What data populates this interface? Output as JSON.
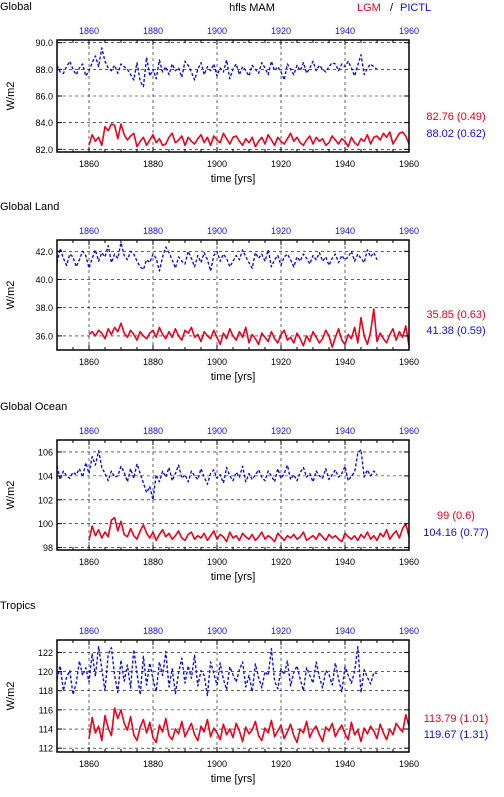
{
  "header": {
    "variable": "hfls MAM",
    "lgm_label": "LGM",
    "separator": "/",
    "pictl_label": "PICTL"
  },
  "colors": {
    "lgm": "#e8001c",
    "pictl": "#1010d8",
    "axis": "#000000"
  },
  "chart_data": [
    {
      "type": "line",
      "title": "Global",
      "xlabel": "time [yrs]",
      "ylabel": "W/m2",
      "xlim": [
        1850,
        1960
      ],
      "ylim": [
        81.8,
        90.2
      ],
      "xticks": [
        1860,
        1880,
        1900,
        1920,
        1940,
        1960
      ],
      "yticks": [
        82.0,
        84.0,
        86.0,
        88.0,
        90.0
      ],
      "ytick_labels": [
        "82.0",
        "84.0",
        "86.0",
        "88.0",
        "90.0"
      ],
      "grid": true,
      "summary": [
        {
          "text": "82.76 (0.49)",
          "series": "LGM"
        },
        {
          "text": "88.02 (0.62)",
          "series": "PICTL"
        }
      ],
      "series": [
        {
          "name": "LGM",
          "x_start": 1860,
          "values": [
            82.3,
            83.1,
            82.6,
            82.9,
            82.3,
            83.7,
            83.4,
            83.9,
            83.8,
            82.8,
            83.9,
            83.1,
            82.7,
            83.0,
            83.2,
            82.2,
            82.6,
            82.9,
            82.3,
            82.7,
            83.1,
            82.5,
            82.8,
            82.3,
            82.4,
            82.9,
            83.2,
            82.5,
            82.7,
            83.0,
            82.3,
            82.9,
            82.6,
            82.4,
            82.8,
            83.1,
            82.5,
            82.9,
            82.3,
            83.0,
            82.7,
            82.5,
            83.2,
            82.8,
            82.4,
            82.9,
            83.0,
            82.6,
            82.3,
            82.8,
            82.5,
            82.9,
            82.2,
            82.6,
            82.9,
            82.4,
            83.1,
            82.7,
            82.3,
            82.9,
            82.6,
            82.4,
            82.8,
            83.2,
            82.6,
            82.9,
            82.5,
            82.3,
            82.7,
            83.0,
            82.4,
            82.9,
            82.6,
            82.8,
            82.3,
            82.5,
            83.0,
            82.7,
            82.4,
            82.8,
            82.6,
            82.2,
            82.9,
            82.5,
            82.3,
            82.8,
            82.6,
            83.1,
            82.4,
            82.9,
            83.0,
            82.7,
            83.2,
            82.9,
            83.3,
            82.4,
            82.8,
            83.2,
            83.3,
            83.0,
            82.4
          ]
        },
        {
          "name": "PICTL",
          "x_start": 1850,
          "values": [
            88.3,
            87.8,
            87.7,
            88.2,
            88.6,
            88.0,
            87.6,
            88.1,
            88.4,
            87.5,
            87.9,
            88.5,
            89.0,
            88.2,
            89.6,
            88.6,
            88.1,
            87.9,
            88.3,
            87.7,
            88.4,
            88.2,
            88.0,
            87.6,
            87.2,
            88.5,
            87.1,
            86.7,
            88.9,
            87.5,
            88.0,
            87.3,
            88.7,
            87.8,
            88.2,
            87.6,
            88.4,
            87.9,
            88.1,
            87.4,
            88.6,
            88.3,
            87.8,
            87.2,
            88.0,
            88.5,
            87.6,
            88.2,
            87.9,
            88.4,
            87.5,
            88.1,
            87.8,
            88.7,
            87.3,
            88.0,
            88.4,
            87.6,
            88.2,
            87.9,
            87.5,
            88.3,
            88.0,
            87.7,
            88.5,
            88.1,
            87.6,
            88.6,
            87.9,
            88.2,
            87.8,
            87.2,
            88.4,
            88.0,
            87.6,
            88.3,
            87.9,
            88.5,
            87.7,
            88.1,
            88.6,
            87.9,
            88.3,
            88.0,
            87.8,
            88.2,
            88.5,
            88.4,
            87.9,
            88.4,
            88.2,
            88.6,
            88.1,
            87.5,
            88.3,
            89.1,
            87.6,
            88.1,
            88.4,
            88.2,
            88.0
          ]
        }
      ]
    },
    {
      "type": "line",
      "title": "Global Land",
      "xlabel": "time [yrs]",
      "ylabel": "W/m2",
      "xlim": [
        1850,
        1960
      ],
      "ylim": [
        35.0,
        42.8
      ],
      "xticks": [
        1860,
        1880,
        1900,
        1920,
        1940,
        1960
      ],
      "yticks": [
        36.0,
        38.0,
        40.0,
        42.0
      ],
      "ytick_labels": [
        "36.0",
        "38.0",
        "40.0",
        "42.0"
      ],
      "grid": true,
      "summary": [
        {
          "text": "35.85 (0.63)",
          "series": "LGM"
        },
        {
          "text": "41.38 (0.59)",
          "series": "PICTL"
        }
      ],
      "series": [
        {
          "name": "LGM",
          "x_start": 1860,
          "values": [
            36.1,
            36.3,
            36.0,
            36.4,
            36.2,
            35.8,
            36.5,
            36.1,
            36.6,
            36.3,
            36.9,
            36.2,
            35.9,
            36.4,
            36.1,
            35.7,
            36.3,
            36.0,
            35.8,
            36.2,
            36.4,
            35.9,
            36.6,
            36.1,
            35.8,
            36.3,
            35.9,
            36.5,
            36.0,
            35.7,
            36.4,
            36.2,
            36.6,
            35.9,
            36.1,
            35.6,
            36.3,
            36.0,
            35.8,
            36.4,
            35.9,
            35.4,
            36.2,
            35.8,
            36.5,
            36.0,
            35.7,
            36.3,
            35.9,
            36.6,
            35.5,
            36.1,
            35.8,
            35.4,
            36.2,
            35.9,
            35.6,
            36.3,
            35.8,
            35.5,
            36.1,
            36.4,
            35.7,
            35.9,
            35.5,
            36.2,
            35.8,
            35.3,
            36.0,
            35.6,
            36.3,
            35.9,
            35.5,
            35.8,
            36.4,
            36.0,
            35.2,
            35.9,
            36.5,
            35.7,
            35.4,
            36.1,
            35.8,
            36.6,
            35.5,
            37.3,
            36.0,
            35.4,
            36.3,
            37.9,
            35.6,
            36.2,
            35.8,
            35.5,
            36.1,
            36.5,
            35.7,
            36.3,
            35.9,
            36.7,
            35.3
          ]
        },
        {
          "name": "PICTL",
          "x_start": 1850,
          "values": [
            41.2,
            42.2,
            41.5,
            41.0,
            41.8,
            41.6,
            40.9,
            41.4,
            42.0,
            41.7,
            40.8,
            41.5,
            42.1,
            41.3,
            41.9,
            41.6,
            42.4,
            41.2,
            41.8,
            41.5,
            42.6,
            41.7,
            41.4,
            42.0,
            41.8,
            41.3,
            40.9,
            40.7,
            41.4,
            41.2,
            41.8,
            41.5,
            40.6,
            41.6,
            42.3,
            41.9,
            41.4,
            40.8,
            41.6,
            41.3,
            41.1,
            42.0,
            41.5,
            40.9,
            41.7,
            41.2,
            41.9,
            41.4,
            40.6,
            41.7,
            42.0,
            41.3,
            41.8,
            41.5,
            40.9,
            41.3,
            41.7,
            41.4,
            42.1,
            41.6,
            41.2,
            40.8,
            41.9,
            41.5,
            41.8,
            41.3,
            42.1,
            40.9,
            41.4,
            41.7,
            41.0,
            41.6,
            41.8,
            41.4,
            40.9,
            41.6,
            41.3,
            41.8,
            41.5,
            41.1,
            41.7,
            41.4,
            41.9,
            41.3,
            41.6,
            41.0,
            41.5,
            41.8,
            41.2,
            41.7,
            41.4,
            41.6,
            42.0,
            41.3,
            41.8,
            41.5,
            41.2,
            42.1,
            41.6,
            41.9,
            41.4
          ]
        }
      ]
    },
    {
      "type": "line",
      "title": "Global Ocean",
      "xlabel": "time [yrs]",
      "ylabel": "W/m2",
      "xlim": [
        1850,
        1960
      ],
      "ylim": [
        97.8,
        107.0
      ],
      "xticks": [
        1860,
        1880,
        1900,
        1920,
        1940,
        1960
      ],
      "yticks": [
        98,
        100,
        102,
        104,
        106
      ],
      "ytick_labels": [
        "98",
        "100",
        "102",
        "104",
        "106"
      ],
      "grid": true,
      "summary": [
        {
          "text": "99 (0.6)",
          "series": "LGM"
        },
        {
          "text": "104.16 (0.77)",
          "series": "PICTL"
        }
      ],
      "series": [
        {
          "name": "LGM",
          "x_start": 1860,
          "values": [
            98.6,
            99.8,
            99.0,
            99.5,
            98.8,
            99.3,
            98.9,
            100.3,
            100.5,
            99.4,
            100.2,
            99.1,
            98.9,
            99.6,
            99.0,
            98.7,
            99.4,
            99.9,
            99.2,
            98.8,
            99.3,
            98.6,
            99.1,
            99.5,
            98.9,
            99.2,
            98.7,
            99.0,
            99.4,
            98.8,
            98.6,
            99.1,
            99.3,
            98.7,
            99.0,
            98.8,
            99.2,
            98.6,
            99.0,
            99.4,
            98.7,
            99.1,
            98.9,
            98.5,
            99.3,
            98.8,
            99.0,
            98.6,
            99.2,
            98.9,
            98.7,
            99.1,
            98.6,
            98.9,
            99.3,
            98.7,
            99.0,
            98.8,
            98.5,
            99.2,
            98.9,
            98.6,
            99.0,
            98.8,
            99.1,
            98.7,
            98.9,
            99.3,
            98.6,
            98.8,
            99.0,
            98.7,
            99.2,
            98.9,
            98.6,
            99.1,
            98.8,
            99.0,
            98.7,
            98.5,
            99.2,
            98.9,
            98.7,
            99.0,
            98.6,
            99.1,
            98.8,
            99.3,
            98.7,
            99.0,
            98.6,
            99.2,
            98.9,
            99.5,
            98.7,
            99.1,
            99.4,
            98.8,
            99.6,
            100.0,
            98.9
          ]
        },
        {
          "name": "PICTL",
          "x_start": 1850,
          "values": [
            104.8,
            103.7,
            104.4,
            104.0,
            103.8,
            104.3,
            104.1,
            104.6,
            103.9,
            105.1,
            104.2,
            105.6,
            104.9,
            106.1,
            104.7,
            104.2,
            103.6,
            104.4,
            103.9,
            104.0,
            104.8,
            104.3,
            103.5,
            104.6,
            103.8,
            105.0,
            104.2,
            103.4,
            102.6,
            103.1,
            102.0,
            104.1,
            103.5,
            104.4,
            103.9,
            104.7,
            103.6,
            104.2,
            104.9,
            103.8,
            104.1,
            103.5,
            104.4,
            104.0,
            103.7,
            104.6,
            103.9,
            103.3,
            104.2,
            104.5,
            103.8,
            104.1,
            103.4,
            104.7,
            104.0,
            103.6,
            104.3,
            103.9,
            104.8,
            103.5,
            104.2,
            103.7,
            104.1,
            104.5,
            103.9,
            103.6,
            104.4,
            104.0,
            103.5,
            104.6,
            103.8,
            104.2,
            104.9,
            103.7,
            104.1,
            103.6,
            104.3,
            104.7,
            103.9,
            104.2,
            103.5,
            104.4,
            104.0,
            103.8,
            104.6,
            103.7,
            104.1,
            104.5,
            103.9,
            104.2,
            104.8,
            103.6,
            104.0,
            104.3,
            105.9,
            106.2,
            103.9,
            104.5,
            104.0,
            104.4,
            104.1
          ]
        }
      ]
    },
    {
      "type": "line",
      "title": "Tropics",
      "xlabel": "time [yrs]",
      "ylabel": "W/m2",
      "xlim": [
        1850,
        1960
      ],
      "ylim": [
        111.6,
        123.3
      ],
      "xticks": [
        1860,
        1880,
        1900,
        1920,
        1940,
        1960
      ],
      "yticks": [
        112,
        114,
        116,
        118,
        120,
        122
      ],
      "ytick_labels": [
        "112",
        "114",
        "116",
        "118",
        "120",
        "122"
      ],
      "grid": true,
      "summary": [
        {
          "text": "113.79 (1.01)",
          "series": "LGM"
        },
        {
          "text": "119.67 (1.31)",
          "series": "PICTL"
        }
      ],
      "series": [
        {
          "name": "LGM",
          "x_start": 1860,
          "values": [
            113.0,
            115.2,
            113.6,
            114.3,
            112.8,
            115.4,
            114.1,
            113.3,
            116.2,
            115.1,
            116.0,
            114.6,
            113.9,
            115.3,
            113.4,
            112.8,
            114.2,
            115.0,
            113.6,
            114.7,
            113.1,
            112.6,
            114.4,
            113.7,
            115.1,
            113.3,
            112.9,
            114.0,
            113.5,
            114.8,
            113.2,
            113.9,
            114.6,
            113.4,
            112.8,
            114.3,
            113.7,
            115.0,
            113.2,
            114.1,
            113.6,
            112.9,
            114.5,
            113.4,
            114.0,
            113.1,
            114.6,
            113.8,
            112.7,
            114.2,
            113.5,
            113.9,
            114.8,
            113.3,
            112.8,
            114.1,
            113.6,
            114.9,
            113.2,
            113.8,
            114.4,
            113.0,
            113.7,
            114.5,
            113.3,
            112.6,
            114.0,
            113.6,
            114.8,
            113.1,
            113.9,
            114.3,
            113.4,
            112.7,
            114.2,
            113.8,
            114.6,
            113.2,
            113.9,
            114.4,
            113.5,
            112.9,
            114.7,
            113.4,
            113.9,
            112.7,
            114.1,
            113.5,
            114.3,
            113.8,
            113.0,
            114.5,
            113.6,
            112.9,
            114.0,
            113.4,
            114.6,
            114.1,
            113.7,
            115.5,
            114.3
          ]
        },
        {
          "name": "PICTL",
          "x_start": 1850,
          "values": [
            119.2,
            120.6,
            118.0,
            119.4,
            120.1,
            117.6,
            118.8,
            121.1,
            119.6,
            120.4,
            118.9,
            121.9,
            119.5,
            122.6,
            120.3,
            118.0,
            121.8,
            122.5,
            119.6,
            117.8,
            121.2,
            119.0,
            120.7,
            118.3,
            122.3,
            119.8,
            117.6,
            121.6,
            118.6,
            120.9,
            119.2,
            117.9,
            121.0,
            119.6,
            122.1,
            118.4,
            120.3,
            117.7,
            119.9,
            121.4,
            118.8,
            120.6,
            119.3,
            121.7,
            118.5,
            120.1,
            119.6,
            117.5,
            121.0,
            119.8,
            118.6,
            120.9,
            119.2,
            118.1,
            120.5,
            119.7,
            118.9,
            120.2,
            121.0,
            118.4,
            119.6,
            117.9,
            120.8,
            119.4,
            118.3,
            120.0,
            119.6,
            122.4,
            119.0,
            118.2,
            120.3,
            119.7,
            121.1,
            118.5,
            119.9,
            120.6,
            119.2,
            118.0,
            120.4,
            119.6,
            118.8,
            121.0,
            119.4,
            118.3,
            120.1,
            119.7,
            118.6,
            120.9,
            119.2,
            117.9,
            120.5,
            119.6,
            118.8,
            120.0,
            122.6,
            117.8,
            120.2,
            119.4,
            118.7,
            119.9,
            119.8
          ]
        }
      ]
    }
  ]
}
